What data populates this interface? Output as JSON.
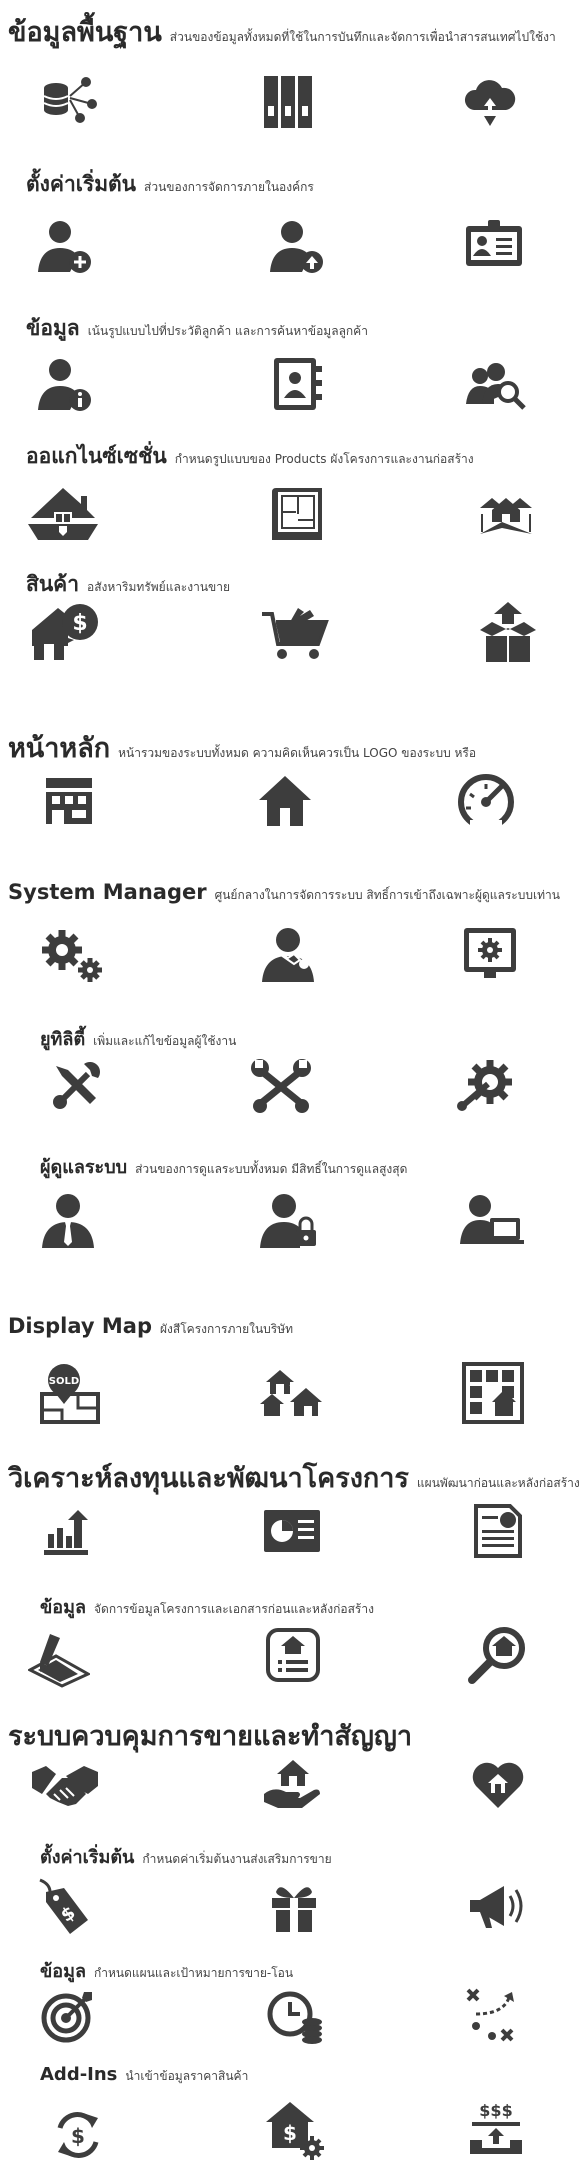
{
  "colors": {
    "icon": "#3d3d3d",
    "text": "#2a2a2a",
    "background": "#ffffff"
  },
  "sections": [
    {
      "id": "s1",
      "title": "ข้อมูลพื้นฐาน",
      "desc": "ส่วนของข้อมูลทั้งหมดที่ใช้ในการบันทึกและจัดการเพื่อนำสารสนเทศไปใช้งา",
      "icons": [
        "database-network-icon",
        "binders-icon",
        "cloud-sync-icon"
      ]
    },
    {
      "id": "s2",
      "title": "ตั้งค่าเริ่มต้น",
      "desc": "ส่วนของการจัดการภายในองค์กร",
      "icons": [
        "user-add-icon",
        "user-upload-icon",
        "id-card-icon"
      ]
    },
    {
      "id": "s3",
      "title": "ข้อมูล",
      "desc": "เน้นรูปแบบไปที่ประวัติลูกค้า และการค้นหาข้อมูลลูกค้า",
      "icons": [
        "user-info-icon",
        "contact-book-icon",
        "user-search-icon"
      ]
    },
    {
      "id": "s4",
      "title": "ออแกไนซ์เซชั่น",
      "desc": "กำหนดรูปแบบของ Products ผังโครงการและงานก่อสร้าง",
      "icons": [
        "house-land-icon",
        "blueprint-icon",
        "house-plot-icon"
      ]
    },
    {
      "id": "s5",
      "title": "สินค้า",
      "desc": "อสังหาริมทรัพย์และงานขาย",
      "icons": [
        "house-price-icon",
        "shopping-cart-icon",
        "house-box-icon"
      ]
    },
    {
      "id": "s6",
      "title": "หน้าหลัก",
      "desc": "หน้ารวมของระบบทั้งหมด ความคิดเห็นควรเป็น LOGO ของระบบ หรือ",
      "icons": [
        "store-icon",
        "home-icon",
        "speedometer-icon"
      ]
    },
    {
      "id": "s7",
      "title": "System Manager",
      "desc": "ศูนย์กลางในการจัดการระบบ สิทธิ์การเข้าถึงเฉพาะผู้ดูแลระบบเท่าน",
      "icons": [
        "gears-icon",
        "user-wrench-icon",
        "settings-monitor-icon"
      ]
    },
    {
      "id": "s8",
      "title": "ยูทิลิตี้",
      "desc": "เพิ่มและแก้ไขข้อมูลผู้ใช้งาน",
      "icons": [
        "tools-icon",
        "crossed-wrenches-icon",
        "wrench-gear-icon"
      ]
    },
    {
      "id": "s9",
      "title": "ผู้ดูแลระบบ",
      "desc": "ส่วนของการดูแลระบบทั้งหมด มีสิทธิ์ในการดูแลสูงสุด",
      "icons": [
        "admin-user-icon",
        "user-lock-icon",
        "user-laptop-icon"
      ]
    },
    {
      "id": "s10",
      "title": "Display Map",
      "desc": "ผังสีโครงการภายในบริษัท",
      "icons": [
        "sold-sign-icon",
        "houses-icon",
        "map-grid-icon"
      ]
    },
    {
      "id": "s11",
      "title": "วิเคราะห์ลงทุนและพัฒนาโครงการ",
      "desc": "แผนพัฒนาก่อนและหลังก่อสร้าง",
      "icons": [
        "chart-upload-icon",
        "presentation-icon",
        "report-icon"
      ]
    },
    {
      "id": "s12",
      "title": "ข้อมูล",
      "desc": "จัดการข้อมูลโครงการและเอกสารก่อนและหลังก่อสร้าง",
      "icons": [
        "land-pen-icon",
        "house-list-icon",
        "house-search-icon"
      ]
    },
    {
      "id": "s13",
      "title": "ระบบควบคุมการขายและทำสัญญา",
      "desc": "",
      "icons": [
        "handshake-icon",
        "house-hand-icon",
        "heart-house-icon"
      ]
    },
    {
      "id": "s14",
      "title": "ตั้งค่าเริ่มต้น",
      "desc": "กำหนดค่าเริ่มต้นงานส่งเสริมการขาย",
      "icons": [
        "price-tag-icon",
        "gift-icon",
        "megaphone-icon"
      ]
    },
    {
      "id": "s15",
      "title": "ข้อมูล",
      "desc": "กำหนดแผนและเป้าหมายการขาย-โอน",
      "icons": [
        "target-icon",
        "time-money-icon",
        "strategy-icon"
      ]
    },
    {
      "id": "s16",
      "title": "Add-Ins",
      "desc": "นำเข้าข้อมูลราคาสินค้า",
      "icons": [
        "money-cycle-icon",
        "house-money-gear-icon",
        "money-tray-icon"
      ]
    }
  ]
}
